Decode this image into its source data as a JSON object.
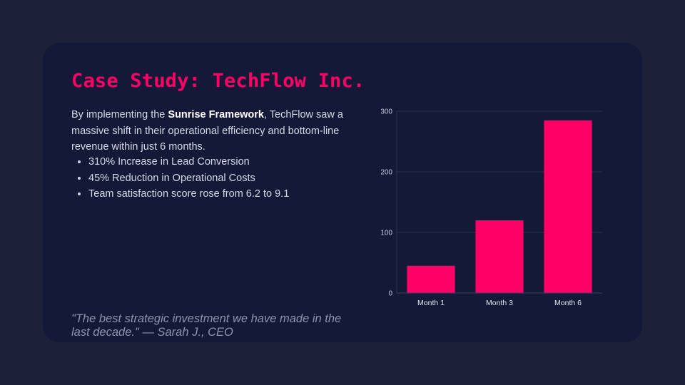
{
  "slide": {
    "title": "Case Study: TechFlow Inc.",
    "intro_before": "By implementing the ",
    "intro_strong": "Sunrise Framework",
    "intro_after": ", TechFlow saw a massive shift in their operational efficiency and bottom-line revenue within just 6 months.",
    "bullets": [
      "310% Increase in Lead Conversion",
      "45% Reduction in Operational Costs",
      "Team satisfaction score rose from 6.2 to 9.1"
    ],
    "quote": "\"The best strategic investment we have made in the last decade.\" — Sarah J., CEO"
  },
  "colors": {
    "accent": "#ff0066",
    "background": "#1c2039",
    "card": "#141938"
  },
  "chart_data": {
    "type": "bar",
    "categories": [
      "Month 1",
      "Month 3",
      "Month 6"
    ],
    "values": [
      45,
      120,
      285
    ],
    "ylim": [
      0,
      300
    ],
    "yticks": [
      0,
      100,
      200,
      300
    ],
    "grid": true,
    "title": "",
    "xlabel": "",
    "ylabel": ""
  }
}
